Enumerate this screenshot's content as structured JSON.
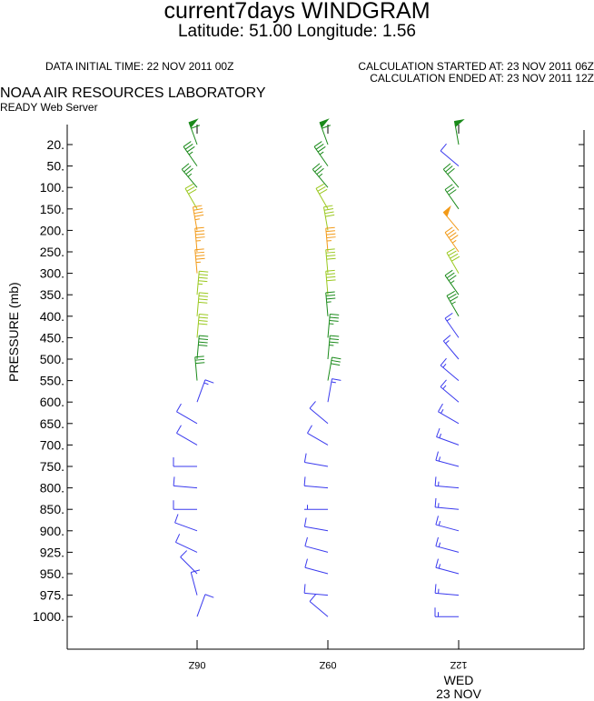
{
  "header": {
    "title": "current7days WINDGRAM",
    "subtitle": "Latitude: 51.00 Longitude:   1.56",
    "init_time": "DATA INITIAL TIME: 22 NOV 2011 00Z",
    "calc_started": "CALCULATION STARTED AT: 23 NOV 2011 06Z",
    "calc_ended": "CALCULATION ENDED AT: 23 NOV 2011 12Z",
    "lab": "NOAA AIR RESOURCES LABORATORY",
    "server": "READY Web Server"
  },
  "chart_data": {
    "type": "windgram",
    "ylabel": "PRESSURE (mb)",
    "pressure_levels": [
      20,
      50,
      100,
      150,
      200,
      250,
      300,
      350,
      400,
      450,
      500,
      550,
      600,
      650,
      700,
      750,
      800,
      850,
      900,
      925,
      950,
      975,
      1000
    ],
    "time_ticks": [
      "06Z",
      "09Z",
      "12Z"
    ],
    "date_label": {
      "weekday": "WED",
      "date": "23 NOV"
    },
    "colors": {
      "blue": "#3a3aee",
      "dark_green": "#1a8a1a",
      "yellow_green": "#9ac81e",
      "orange": "#f29a18"
    },
    "columns": [
      {
        "time": "06Z",
        "levels": [
          {
            "p": 20,
            "dir": 340,
            "kt": 60,
            "color": "dark_green"
          },
          {
            "p": 50,
            "dir": 325,
            "kt": 35,
            "color": "dark_green"
          },
          {
            "p": 100,
            "dir": 320,
            "kt": 35,
            "color": "dark_green"
          },
          {
            "p": 150,
            "dir": 330,
            "kt": 30,
            "color": "yellow_green"
          },
          {
            "p": 200,
            "dir": 350,
            "kt": 45,
            "color": "orange"
          },
          {
            "p": 250,
            "dir": 355,
            "kt": 45,
            "color": "orange"
          },
          {
            "p": 300,
            "dir": 355,
            "kt": 45,
            "color": "orange"
          },
          {
            "p": 350,
            "dir": 5,
            "kt": 45,
            "color": "yellow_green"
          },
          {
            "p": 400,
            "dir": 5,
            "kt": 40,
            "color": "yellow_green"
          },
          {
            "p": 450,
            "dir": 5,
            "kt": 40,
            "color": "yellow_green"
          },
          {
            "p": 500,
            "dir": 5,
            "kt": 40,
            "color": "dark_green"
          },
          {
            "p": 550,
            "dir": 355,
            "kt": 30,
            "color": "dark_green"
          },
          {
            "p": 600,
            "dir": 20,
            "kt": 15,
            "color": "blue"
          },
          {
            "p": 650,
            "dir": 300,
            "kt": 10,
            "color": "blue"
          },
          {
            "p": 700,
            "dir": 300,
            "kt": 10,
            "color": "blue"
          },
          {
            "p": 750,
            "dir": 270,
            "kt": 10,
            "color": "blue"
          },
          {
            "p": 800,
            "dir": 275,
            "kt": 10,
            "color": "blue"
          },
          {
            "p": 850,
            "dir": 270,
            "kt": 10,
            "color": "blue"
          },
          {
            "p": 900,
            "dir": 290,
            "kt": 10,
            "color": "blue"
          },
          {
            "p": 925,
            "dir": 295,
            "kt": 10,
            "color": "blue"
          },
          {
            "p": 950,
            "dir": 315,
            "kt": 10,
            "color": "blue"
          },
          {
            "p": 975,
            "dir": 345,
            "kt": 10,
            "color": "blue"
          },
          {
            "p": 1000,
            "dir": 20,
            "kt": 10,
            "color": "blue"
          }
        ]
      },
      {
        "time": "09Z",
        "levels": [
          {
            "p": 20,
            "dir": 340,
            "kt": 60,
            "color": "dark_green"
          },
          {
            "p": 50,
            "dir": 325,
            "kt": 35,
            "color": "dark_green"
          },
          {
            "p": 100,
            "dir": 320,
            "kt": 35,
            "color": "dark_green"
          },
          {
            "p": 150,
            "dir": 330,
            "kt": 30,
            "color": "yellow_green"
          },
          {
            "p": 200,
            "dir": 350,
            "kt": 40,
            "color": "yellow_green"
          },
          {
            "p": 250,
            "dir": 355,
            "kt": 45,
            "color": "orange"
          },
          {
            "p": 300,
            "dir": 355,
            "kt": 40,
            "color": "yellow_green"
          },
          {
            "p": 350,
            "dir": 355,
            "kt": 40,
            "color": "yellow_green"
          },
          {
            "p": 400,
            "dir": 355,
            "kt": 35,
            "color": "dark_green"
          },
          {
            "p": 450,
            "dir": 5,
            "kt": 35,
            "color": "dark_green"
          },
          {
            "p": 500,
            "dir": 5,
            "kt": 35,
            "color": "dark_green"
          },
          {
            "p": 550,
            "dir": 10,
            "kt": 30,
            "color": "dark_green"
          },
          {
            "p": 600,
            "dir": 10,
            "kt": 15,
            "color": "blue"
          },
          {
            "p": 650,
            "dir": 310,
            "kt": 10,
            "color": "blue"
          },
          {
            "p": 700,
            "dir": 300,
            "kt": 10,
            "color": "blue"
          },
          {
            "p": 750,
            "dir": 280,
            "kt": 10,
            "color": "blue"
          },
          {
            "p": 800,
            "dir": 275,
            "kt": 10,
            "color": "blue"
          },
          {
            "p": 850,
            "dir": 270,
            "kt": 5,
            "color": "blue"
          },
          {
            "p": 900,
            "dir": 280,
            "kt": 10,
            "color": "blue"
          },
          {
            "p": 925,
            "dir": 285,
            "kt": 10,
            "color": "blue"
          },
          {
            "p": 950,
            "dir": 285,
            "kt": 10,
            "color": "blue"
          },
          {
            "p": 975,
            "dir": 275,
            "kt": 10,
            "color": "blue"
          },
          {
            "p": 1000,
            "dir": 310,
            "kt": 10,
            "color": "blue"
          }
        ]
      },
      {
        "time": "12Z",
        "levels": [
          {
            "p": 20,
            "dir": 350,
            "kt": 50,
            "color": "dark_green"
          },
          {
            "p": 50,
            "dir": 310,
            "kt": 10,
            "color": "blue"
          },
          {
            "p": 100,
            "dir": 320,
            "kt": 30,
            "color": "dark_green"
          },
          {
            "p": 150,
            "dir": 325,
            "kt": 30,
            "color": "dark_green"
          },
          {
            "p": 200,
            "dir": 320,
            "kt": 50,
            "color": "orange"
          },
          {
            "p": 250,
            "dir": 325,
            "kt": 45,
            "color": "orange"
          },
          {
            "p": 300,
            "dir": 330,
            "kt": 40,
            "color": "yellow_green"
          },
          {
            "p": 350,
            "dir": 325,
            "kt": 35,
            "color": "dark_green"
          },
          {
            "p": 400,
            "dir": 330,
            "kt": 35,
            "color": "dark_green"
          },
          {
            "p": 450,
            "dir": 325,
            "kt": 15,
            "color": "blue"
          },
          {
            "p": 500,
            "dir": 320,
            "kt": 15,
            "color": "blue"
          },
          {
            "p": 550,
            "dir": 310,
            "kt": 15,
            "color": "blue"
          },
          {
            "p": 600,
            "dir": 310,
            "kt": 15,
            "color": "blue"
          },
          {
            "p": 650,
            "dir": 300,
            "kt": 15,
            "color": "blue"
          },
          {
            "p": 700,
            "dir": 290,
            "kt": 15,
            "color": "blue"
          },
          {
            "p": 750,
            "dir": 285,
            "kt": 15,
            "color": "blue"
          },
          {
            "p": 800,
            "dir": 275,
            "kt": 15,
            "color": "blue"
          },
          {
            "p": 850,
            "dir": 275,
            "kt": 15,
            "color": "blue"
          },
          {
            "p": 900,
            "dir": 285,
            "kt": 15,
            "color": "blue"
          },
          {
            "p": 925,
            "dir": 285,
            "kt": 15,
            "color": "blue"
          },
          {
            "p": 950,
            "dir": 285,
            "kt": 15,
            "color": "blue"
          },
          {
            "p": 975,
            "dir": 275,
            "kt": 15,
            "color": "blue"
          },
          {
            "p": 1000,
            "dir": 270,
            "kt": 15,
            "color": "blue"
          }
        ]
      }
    ]
  }
}
